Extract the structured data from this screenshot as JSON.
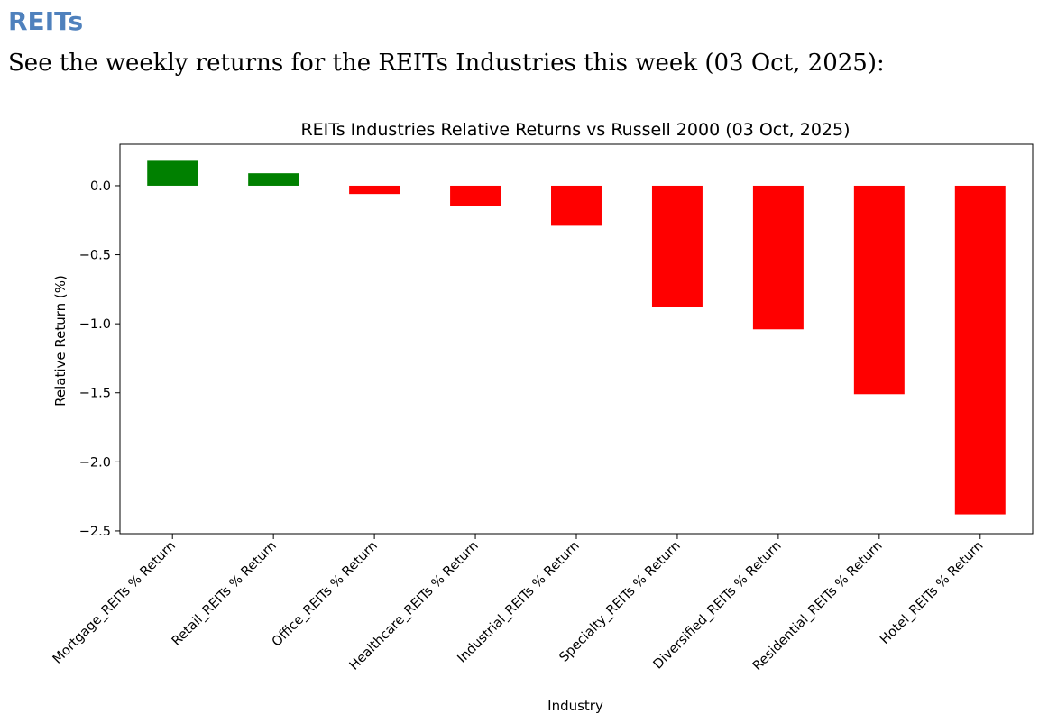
{
  "document": {
    "heading": "REITs",
    "intro": "See the weekly returns for the REITs Industries this week (03 Oct, 2025):"
  },
  "chart_data": {
    "type": "bar",
    "title": "REITs Industries Relative Returns vs Russell 2000 (03 Oct, 2025)",
    "xlabel": "Industry",
    "ylabel": "Relative Return (%)",
    "categories": [
      "Mortgage_REITs % Return",
      "Retail_REITs % Return",
      "Office_REITs % Return",
      "Healthcare_REITs % Return",
      "Industrial_REITs % Return",
      "Specialty_REITs % Return",
      "Diversified_REITs % Return",
      "Residential_REITs % Return",
      "Hotel_REITs % Return"
    ],
    "values": [
      0.18,
      0.09,
      -0.06,
      -0.15,
      -0.29,
      -0.88,
      -1.04,
      -1.51,
      -2.38
    ],
    "ylim": [
      -2.52,
      0.3
    ],
    "yticks": [
      0.0,
      -0.5,
      -1.0,
      -1.5,
      -2.0,
      -2.5
    ],
    "ytick_labels": [
      "0.0",
      "−0.5",
      "−1.0",
      "−1.5",
      "−2.0",
      "−2.5"
    ],
    "colors": {
      "positive": "#008000",
      "negative": "#ff0000"
    },
    "grid": false,
    "legend": false
  }
}
